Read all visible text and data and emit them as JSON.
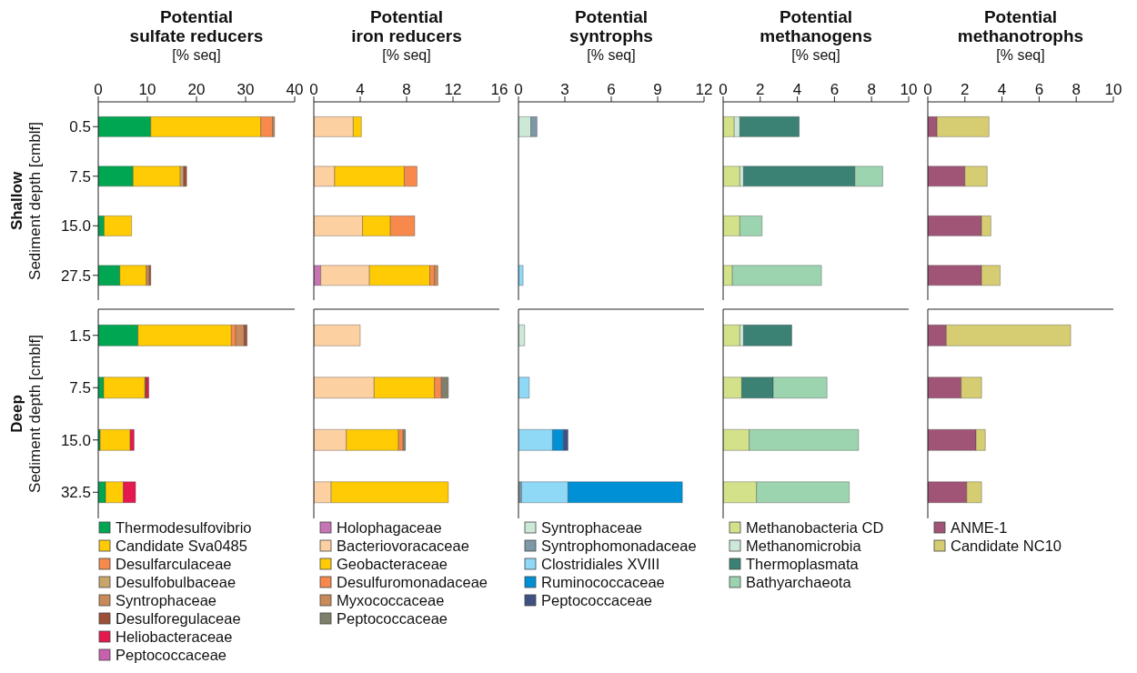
{
  "chart_data": [
    {
      "type": "bar",
      "orientation": "horizontal",
      "stacked": true,
      "title": "Potential\nsulfate reducers",
      "subtitle": "[% seq]",
      "ylabel": "Sediment depth [cmblf]",
      "annotations": [
        "Shallow"
      ],
      "categories": [
        "0.5",
        "7.5",
        "15.0",
        "27.5"
      ],
      "xlim": [
        0,
        40
      ],
      "xticks": [
        0,
        10,
        20,
        30,
        40
      ],
      "series": [
        {
          "color": "#00a651",
          "values": [
            10.7,
            7.1,
            1.2,
            4.4
          ]
        },
        {
          "color": "#ffcb05",
          "values": [
            22.4,
            9.6,
            5.6,
            5.4
          ]
        },
        {
          "color": "#f6894b",
          "values": [
            2.4,
            null,
            null,
            null
          ]
        },
        {
          "color": "#caa56a",
          "values": [
            null,
            0.7,
            null,
            null
          ]
        },
        {
          "color": "#c98a5a",
          "values": [
            0.4,
            null,
            null,
            0.6
          ]
        },
        {
          "color": "#9c5038",
          "values": [
            null,
            0.6,
            null,
            0.3
          ]
        },
        {
          "color": "#e5194f",
          "values": [
            null,
            null,
            null,
            null
          ]
        },
        {
          "color": "#c760ad",
          "values": [
            null,
            null,
            null,
            null
          ]
        }
      ]
    },
    {
      "type": "bar",
      "orientation": "horizontal",
      "stacked": true,
      "title": "Potential\niron reducers",
      "subtitle": "[% seq]",
      "tick_labels": "x",
      "categories": [
        "0.5",
        "7.5",
        "15.0",
        "27.5"
      ],
      "xlim": [
        0,
        16
      ],
      "xticks": [
        0,
        4,
        8,
        12,
        16
      ],
      "series": [
        {
          "color": "#c774b5",
          "values": [
            null,
            null,
            null,
            0.6
          ]
        },
        {
          "color": "#fdd0a2",
          "values": [
            3.4,
            1.8,
            4.2,
            4.2
          ]
        },
        {
          "color": "#ffcb05",
          "values": [
            0.7,
            6.0,
            2.4,
            5.2
          ]
        },
        {
          "color": "#f6894b",
          "values": [
            null,
            1.1,
            2.1,
            0.4
          ]
        },
        {
          "color": "#c98a5a",
          "values": [
            null,
            null,
            null,
            0.3
          ]
        },
        {
          "color": "#7f7f6c",
          "values": [
            null,
            null,
            null,
            null
          ]
        }
      ]
    },
    {
      "type": "bar",
      "orientation": "horizontal",
      "stacked": true,
      "title": "Potential\nsyntrophs",
      "subtitle": "[% seq]",
      "tick_labels": "x",
      "categories": [
        "0.5",
        "7.5",
        "15.0",
        "27.5"
      ],
      "xlim": [
        0,
        12
      ],
      "xticks": [
        0,
        3,
        6,
        9,
        12
      ],
      "series": [
        {
          "color": "#cce8d6",
          "values": [
            0.8,
            null,
            null,
            null
          ]
        },
        {
          "color": "#7e98a8",
          "values": [
            0.4,
            null,
            null,
            null
          ]
        },
        {
          "color": "#8fd8f6",
          "values": [
            null,
            null,
            null,
            0.3
          ]
        },
        {
          "color": "#0090d6",
          "values": [
            null,
            null,
            null,
            null
          ]
        },
        {
          "color": "#3e5181",
          "values": [
            null,
            null,
            null,
            null
          ]
        }
      ]
    },
    {
      "type": "bar",
      "orientation": "horizontal",
      "stacked": true,
      "title": "Potential\nmethanogens",
      "subtitle": "[% seq]",
      "tick_labels": "x",
      "categories": [
        "0.5",
        "7.5",
        "15.0",
        "27.5"
      ],
      "xlim": [
        0,
        10
      ],
      "xticks": [
        0,
        2,
        4,
        6,
        8,
        10
      ],
      "series": [
        {
          "color": "#d3e28a",
          "values": [
            0.6,
            0.9,
            0.9,
            0.5
          ]
        },
        {
          "color": "#cde8d8",
          "values": [
            0.3,
            0.2,
            null,
            null
          ]
        },
        {
          "color": "#3b8274",
          "values": [
            3.2,
            6.0,
            null,
            null
          ]
        },
        {
          "color": "#9dd4b0",
          "values": [
            null,
            1.5,
            1.2,
            4.8
          ]
        }
      ]
    },
    {
      "type": "bar",
      "orientation": "horizontal",
      "stacked": true,
      "title": "Potential\nmethanotrophs",
      "subtitle": "[% seq]",
      "tick_labels": "x",
      "categories": [
        "0.5",
        "7.5",
        "15.0",
        "27.5"
      ],
      "xlim": [
        0,
        10
      ],
      "xticks": [
        0,
        2,
        4,
        6,
        8,
        10
      ],
      "series": [
        {
          "color": "#a05576",
          "values": [
            0.5,
            2.0,
            2.9,
            2.9
          ]
        },
        {
          "color": "#d6cd72",
          "values": [
            2.8,
            1.2,
            0.5,
            1.0
          ]
        }
      ]
    },
    {
      "type": "bar",
      "orientation": "horizontal",
      "stacked": true,
      "ylabel": "Sediment depth [cmblf]",
      "annotations": [
        "Deep"
      ],
      "tick_labels": "y",
      "legend": "bottom left",
      "categories": [
        "1.5",
        "7.5",
        "15.0",
        "32.5"
      ],
      "xlim": [
        0,
        40
      ],
      "xticks": [
        0,
        10,
        20,
        30,
        40
      ],
      "series": [
        {
          "name": "Thermodesulfovibrio",
          "color": "#00a651",
          "values": [
            8.1,
            1.1,
            0.4,
            1.5
          ]
        },
        {
          "name": "Candidate Sva0485",
          "color": "#ffcb05",
          "values": [
            19.0,
            8.4,
            6.1,
            3.6
          ]
        },
        {
          "name": "Desulfarculaceae",
          "color": "#f6894b",
          "values": [
            0.9,
            null,
            null,
            null
          ]
        },
        {
          "name": "Desulfobulbaceae",
          "color": "#caa56a",
          "values": [
            null,
            null,
            null,
            null
          ]
        },
        {
          "name": "Syntrophaceae",
          "color": "#c98a5a",
          "values": [
            1.7,
            null,
            null,
            null
          ]
        },
        {
          "name": "Desulforegulaceae",
          "color": "#9c5038",
          "values": [
            0.6,
            0.3,
            null,
            null
          ]
        },
        {
          "name": "Heliobacteraceae",
          "color": "#e5194f",
          "values": [
            null,
            0.5,
            0.8,
            2.5
          ]
        },
        {
          "name": "Peptococcaceae",
          "color": "#c760ad",
          "values": [
            null,
            null,
            null,
            null
          ]
        }
      ]
    },
    {
      "type": "bar",
      "orientation": "horizontal",
      "stacked": true,
      "tick_labels": false,
      "legend": "bottom left",
      "categories": [
        "1.5",
        "7.5",
        "15.0",
        "32.5"
      ],
      "xlim": [
        0,
        16
      ],
      "xticks": [
        0,
        4,
        8,
        12,
        16
      ],
      "series": [
        {
          "name": "Holophagaceae",
          "color": "#c774b5",
          "values": [
            null,
            null,
            null,
            null
          ]
        },
        {
          "name": "Bacteriovoracaceae",
          "color": "#fdd0a2",
          "values": [
            4.0,
            5.2,
            2.8,
            1.5
          ]
        },
        {
          "name": "Geobacteraceae",
          "color": "#ffcb05",
          "values": [
            null,
            5.2,
            4.5,
            10.1
          ]
        },
        {
          "name": "Desulfuromonadaceae",
          "color": "#f6894b",
          "values": [
            null,
            0.6,
            0.4,
            null
          ]
        },
        {
          "name": "Myxococcaceae",
          "color": "#c98a5a",
          "values": [
            null,
            null,
            null,
            null
          ]
        },
        {
          "name": "Peptococcaceae",
          "color": "#7f7f6c",
          "values": [
            null,
            0.6,
            0.2,
            null
          ]
        }
      ]
    },
    {
      "type": "bar",
      "orientation": "horizontal",
      "stacked": true,
      "tick_labels": false,
      "legend": "bottom left",
      "categories": [
        "1.5",
        "7.5",
        "15.0",
        "32.5"
      ],
      "xlim": [
        0,
        12
      ],
      "xticks": [
        0,
        3,
        6,
        9,
        12
      ],
      "series": [
        {
          "name": "Syntrophaceae",
          "color": "#cce8d6",
          "values": [
            0.4,
            null,
            null,
            null
          ]
        },
        {
          "name": "Syntrophomonadaceae",
          "color": "#7e98a8",
          "values": [
            null,
            null,
            null,
            0.2
          ]
        },
        {
          "name": "Clostridiales XVIII",
          "color": "#8fd8f6",
          "values": [
            null,
            0.7,
            2.2,
            3.0
          ]
        },
        {
          "name": "Ruminococcaceae",
          "color": "#0090d6",
          "values": [
            null,
            null,
            0.7,
            7.4
          ]
        },
        {
          "name": "Peptococcaceae",
          "color": "#3e5181",
          "values": [
            null,
            null,
            0.3,
            null
          ]
        }
      ]
    },
    {
      "type": "bar",
      "orientation": "horizontal",
      "stacked": true,
      "tick_labels": false,
      "legend": "bottom left",
      "categories": [
        "1.5",
        "7.5",
        "15.0",
        "32.5"
      ],
      "xlim": [
        0,
        10
      ],
      "xticks": [
        0,
        2,
        4,
        6,
        8,
        10
      ],
      "series": [
        {
          "name": "Methanobacteria CD",
          "color": "#d3e28a",
          "values": [
            0.9,
            1.0,
            1.4,
            1.8
          ]
        },
        {
          "name": "Methanomicrobia",
          "color": "#cde8d8",
          "values": [
            0.2,
            null,
            null,
            null
          ]
        },
        {
          "name": "Thermoplasmata",
          "color": "#3b8274",
          "values": [
            2.6,
            1.7,
            null,
            null
          ]
        },
        {
          "name": "Bathyarchaeota",
          "color": "#9dd4b0",
          "values": [
            null,
            2.9,
            5.9,
            5.0
          ]
        }
      ]
    },
    {
      "type": "bar",
      "orientation": "horizontal",
      "stacked": true,
      "tick_labels": false,
      "legend": "bottom left",
      "categories": [
        "1.5",
        "7.5",
        "15.0",
        "32.5"
      ],
      "xlim": [
        0,
        10
      ],
      "xticks": [
        0,
        2,
        4,
        6,
        8,
        10
      ],
      "series": [
        {
          "name": "ANME-1",
          "color": "#a05576",
          "values": [
            1.0,
            1.8,
            2.6,
            2.1
          ]
        },
        {
          "name": "Candidate NC10",
          "color": "#d6cd72",
          "values": [
            6.7,
            1.1,
            0.5,
            0.8
          ]
        }
      ]
    }
  ]
}
